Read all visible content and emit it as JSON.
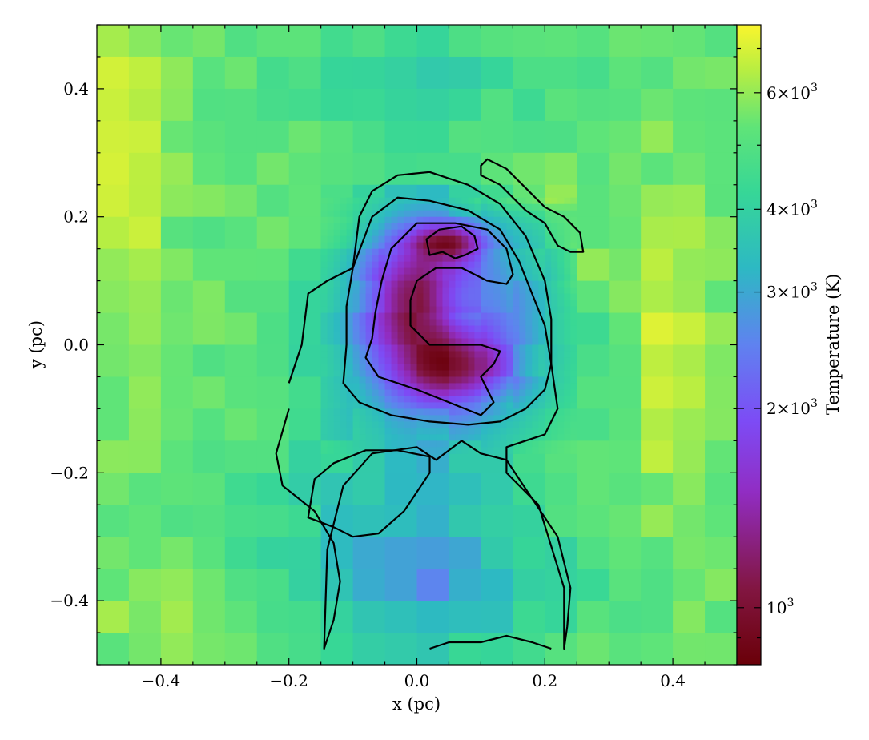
{
  "chart_data": {
    "type": "heatmap",
    "title": "",
    "xlabel": "x  (pc)",
    "ylabel": "y  (pc)",
    "xlim": [
      -0.5,
      0.5
    ],
    "ylim": [
      -0.5,
      0.5
    ],
    "x_ticks": [
      -0.4,
      -0.2,
      0.0,
      0.2,
      0.4
    ],
    "x_tick_labels": [
      "−0.4",
      "−0.2",
      "0.0",
      "0.2",
      "0.4"
    ],
    "y_ticks": [
      -0.4,
      -0.2,
      0.0,
      0.2,
      0.4
    ],
    "y_tick_labels": [
      "−0.4",
      "−0.2",
      "0.0",
      "0.2",
      "0.4"
    ],
    "colorbar": {
      "label": "Temperature  (K)",
      "scale": "log",
      "range": [
        820,
        7600
      ],
      "colormap": "plasma-like (dark red → purple → blue → teal → green → yellow)",
      "ticks": [
        {
          "value": 1000,
          "mantissa": "",
          "exp": "3"
        },
        {
          "value": 2000,
          "mantissa": "2",
          "exp": "3"
        },
        {
          "value": 3000,
          "mantissa": "3",
          "exp": "3"
        },
        {
          "value": 4000,
          "mantissa": "4",
          "exp": "3"
        },
        {
          "value": 6000,
          "mantissa": "6",
          "exp": "3"
        }
      ]
    },
    "features": {
      "cold_core_center": [
        0.05,
        0.16
      ],
      "cold_core_temperature": 850,
      "cavity_center": [
        0.06,
        0.07
      ],
      "cavity_temperature": 2600,
      "hot_region_center": [
        0.18,
        0.24
      ],
      "hot_region_temperature": 7500,
      "background_temperature": 5300
    },
    "contours": [
      {
        "name": "core",
        "points": [
          [
            0.02,
            0.14
          ],
          [
            0.015,
            0.165
          ],
          [
            0.035,
            0.18
          ],
          [
            0.07,
            0.185
          ],
          [
            0.09,
            0.17
          ],
          [
            0.095,
            0.15
          ],
          [
            0.075,
            0.14
          ],
          [
            0.06,
            0.135
          ],
          [
            0.04,
            0.145
          ]
        ]
      },
      {
        "name": "inner",
        "points": [
          [
            -0.07,
            0.01
          ],
          [
            -0.08,
            -0.02
          ],
          [
            -0.06,
            -0.05
          ],
          [
            0.0,
            -0.07
          ],
          [
            0.05,
            -0.09
          ],
          [
            0.1,
            -0.11
          ],
          [
            0.12,
            -0.09
          ],
          [
            0.11,
            -0.07
          ],
          [
            0.1,
            -0.05
          ],
          [
            0.12,
            -0.03
          ],
          [
            0.13,
            -0.01
          ],
          [
            0.1,
            0.0
          ],
          [
            0.05,
            0.0
          ],
          [
            0.02,
            0.0
          ],
          [
            -0.01,
            0.03
          ],
          [
            -0.01,
            0.07
          ],
          [
            0.0,
            0.1
          ],
          [
            0.03,
            0.12
          ],
          [
            0.07,
            0.12
          ],
          [
            0.11,
            0.1
          ],
          [
            0.14,
            0.095
          ],
          [
            0.15,
            0.11
          ],
          [
            0.14,
            0.15
          ],
          [
            0.11,
            0.18
          ],
          [
            0.06,
            0.19
          ],
          [
            0.0,
            0.19
          ],
          [
            -0.04,
            0.15
          ],
          [
            -0.055,
            0.1
          ],
          [
            -0.065,
            0.05
          ]
        ]
      },
      {
        "name": "middle",
        "points": [
          [
            -0.11,
            0.0
          ],
          [
            -0.115,
            -0.06
          ],
          [
            -0.09,
            -0.09
          ],
          [
            -0.04,
            -0.11
          ],
          [
            0.02,
            -0.12
          ],
          [
            0.08,
            -0.125
          ],
          [
            0.13,
            -0.12
          ],
          [
            0.17,
            -0.1
          ],
          [
            0.2,
            -0.07
          ],
          [
            0.21,
            -0.03
          ],
          [
            0.2,
            0.03
          ],
          [
            0.18,
            0.08
          ],
          [
            0.16,
            0.13
          ],
          [
            0.13,
            0.18
          ],
          [
            0.08,
            0.21
          ],
          [
            0.02,
            0.225
          ],
          [
            -0.03,
            0.23
          ],
          [
            -0.07,
            0.2
          ],
          [
            -0.1,
            0.12
          ],
          [
            -0.11,
            0.06
          ]
        ]
      },
      {
        "name": "outer",
        "points": [
          [
            -0.2,
            -0.1
          ],
          [
            -0.22,
            -0.17
          ],
          [
            -0.21,
            -0.22
          ],
          [
            -0.16,
            -0.26
          ],
          [
            -0.13,
            -0.31
          ],
          [
            -0.12,
            -0.37
          ],
          [
            -0.13,
            -0.43
          ],
          [
            -0.145,
            -0.475
          ],
          [
            -0.14,
            -0.32
          ],
          [
            -0.115,
            -0.22
          ],
          [
            -0.07,
            -0.17
          ],
          [
            0.0,
            -0.16
          ],
          [
            0.03,
            -0.18
          ],
          [
            0.07,
            -0.15
          ],
          [
            0.1,
            -0.17
          ],
          [
            0.14,
            -0.18
          ],
          [
            0.18,
            -0.24
          ],
          [
            0.22,
            -0.3
          ],
          [
            0.24,
            -0.38
          ],
          [
            0.235,
            -0.44
          ],
          [
            0.23,
            -0.475
          ],
          [
            0.23,
            -0.38
          ],
          [
            0.19,
            -0.25
          ],
          [
            0.14,
            -0.2
          ],
          [
            0.14,
            -0.16
          ],
          [
            0.2,
            -0.14
          ],
          [
            0.22,
            -0.1
          ],
          [
            0.21,
            -0.03
          ],
          [
            0.21,
            0.04
          ],
          [
            0.2,
            0.1
          ],
          [
            0.17,
            0.17
          ],
          [
            0.13,
            0.22
          ],
          [
            0.08,
            0.25
          ],
          [
            0.02,
            0.27
          ],
          [
            -0.03,
            0.265
          ],
          [
            -0.07,
            0.24
          ],
          [
            -0.09,
            0.2
          ],
          [
            -0.1,
            0.12
          ],
          [
            -0.14,
            0.1
          ],
          [
            -0.17,
            0.08
          ],
          [
            -0.18,
            0.0
          ],
          [
            -0.2,
            -0.06
          ]
        ]
      },
      {
        "name": "lower-loop",
        "points": [
          [
            -0.17,
            -0.27
          ],
          [
            -0.16,
            -0.21
          ],
          [
            -0.13,
            -0.185
          ],
          [
            -0.08,
            -0.165
          ],
          [
            -0.03,
            -0.165
          ],
          [
            0.02,
            -0.175
          ],
          [
            0.02,
            -0.2
          ],
          [
            -0.02,
            -0.26
          ],
          [
            -0.06,
            -0.295
          ],
          [
            -0.1,
            -0.3
          ],
          [
            -0.13,
            -0.285
          ]
        ]
      },
      {
        "name": "hot-ridge",
        "points": [
          [
            0.1,
            0.28
          ],
          [
            0.11,
            0.29
          ],
          [
            0.14,
            0.275
          ],
          [
            0.17,
            0.245
          ],
          [
            0.2,
            0.215
          ],
          [
            0.23,
            0.2
          ],
          [
            0.255,
            0.175
          ],
          [
            0.26,
            0.145
          ],
          [
            0.24,
            0.145
          ],
          [
            0.22,
            0.155
          ],
          [
            0.2,
            0.19
          ],
          [
            0.17,
            0.21
          ],
          [
            0.13,
            0.25
          ],
          [
            0.1,
            0.265
          ]
        ]
      },
      {
        "name": "bottom-edge",
        "points": [
          [
            0.02,
            -0.475
          ],
          [
            0.05,
            -0.465
          ],
          [
            0.1,
            -0.465
          ],
          [
            0.14,
            -0.455
          ],
          [
            0.18,
            -0.465
          ],
          [
            0.21,
            -0.475
          ]
        ]
      }
    ]
  }
}
